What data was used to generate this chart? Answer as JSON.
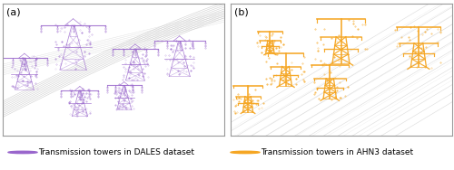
{
  "panel_a_label": "(a)",
  "panel_b_label": "(b)",
  "legend_a_text": "Transmission towers in DALES dataset",
  "legend_b_text": "Transmission towers in AHN3 dataset",
  "legend_a_color": "#9966cc",
  "legend_b_color": "#f5a623",
  "background_color": "#ffffff",
  "panel_bg_color": "#ffffff",
  "border_color": "#999999",
  "cable_color_a": "#bbbbbb",
  "cable_color_b": "#cccccc",
  "figsize": [
    5.0,
    1.88
  ],
  "dpi": 100
}
